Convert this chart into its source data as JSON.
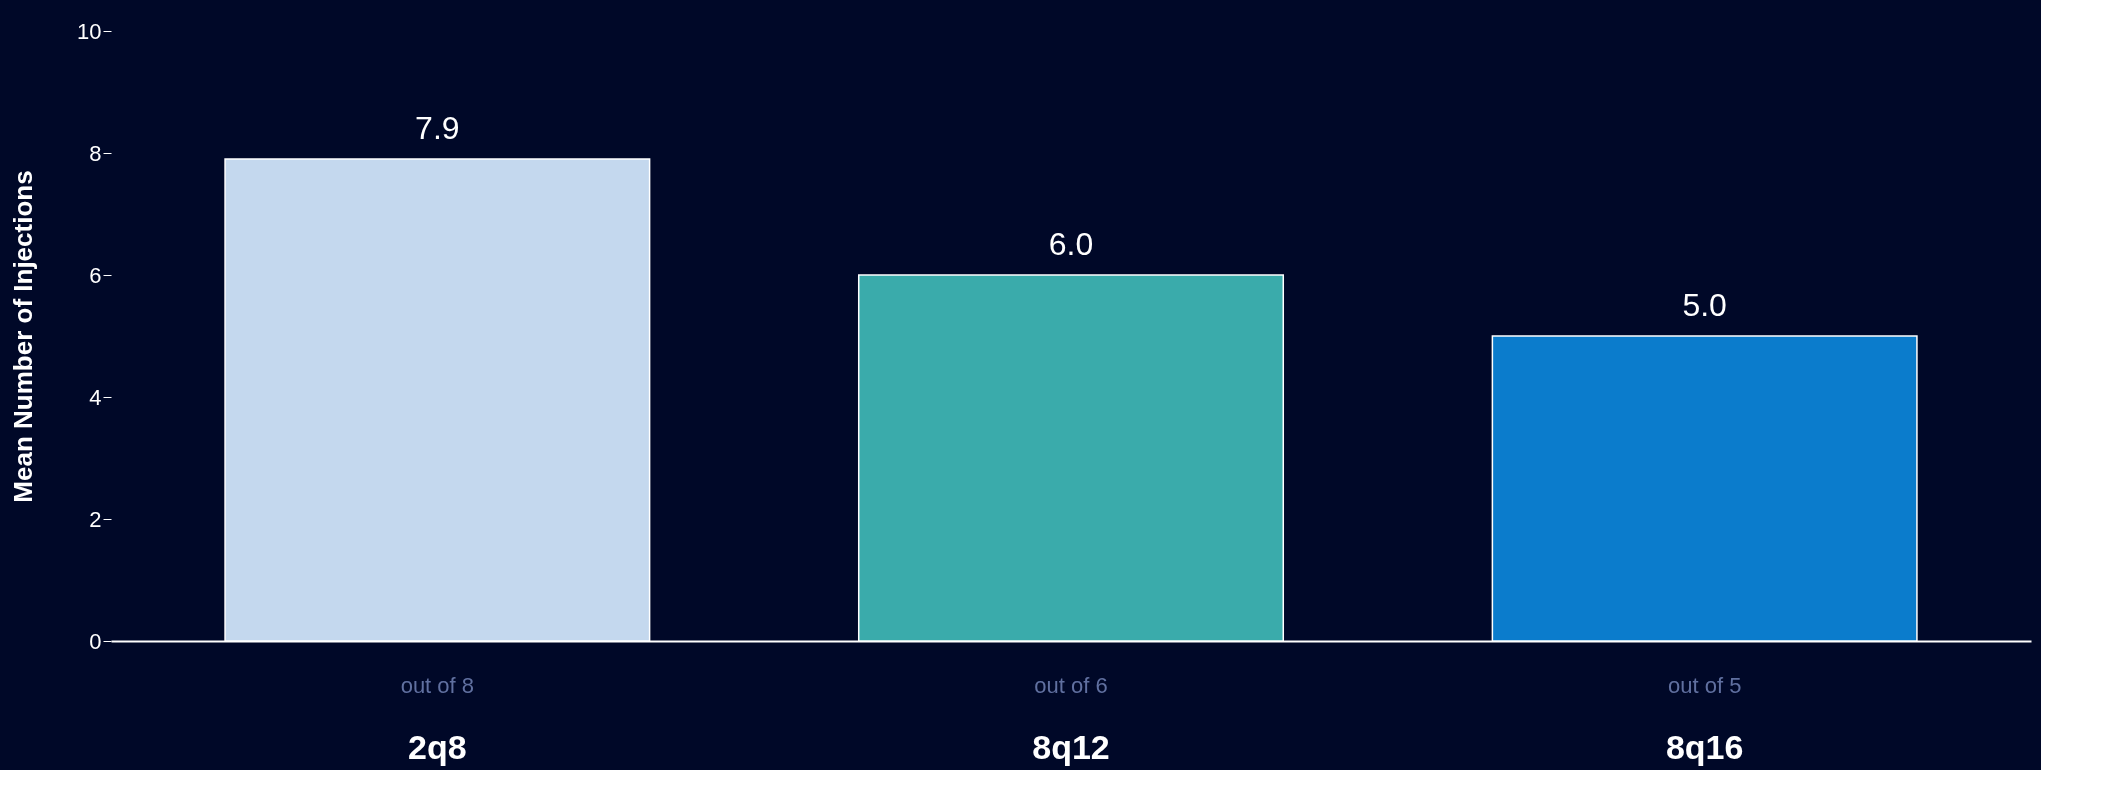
{
  "chart_data": {
    "type": "bar",
    "ylabel": "Mean Number of Injections",
    "categories": [
      "2q8",
      "8q12",
      "8q16"
    ],
    "values": [
      7.9,
      6.0,
      5.0
    ],
    "colors": [
      "#c4d8ee",
      "#3aabab",
      "#0b7ccc"
    ],
    "value_labels": [
      "7.9",
      "6.0",
      "5.0"
    ],
    "ylim": [
      0,
      10
    ],
    "yticks": [
      0,
      2,
      4,
      6,
      8,
      10
    ],
    "grid": false,
    "annotations": [
      "out of 8",
      "out of 6",
      "out of 5"
    ]
  }
}
